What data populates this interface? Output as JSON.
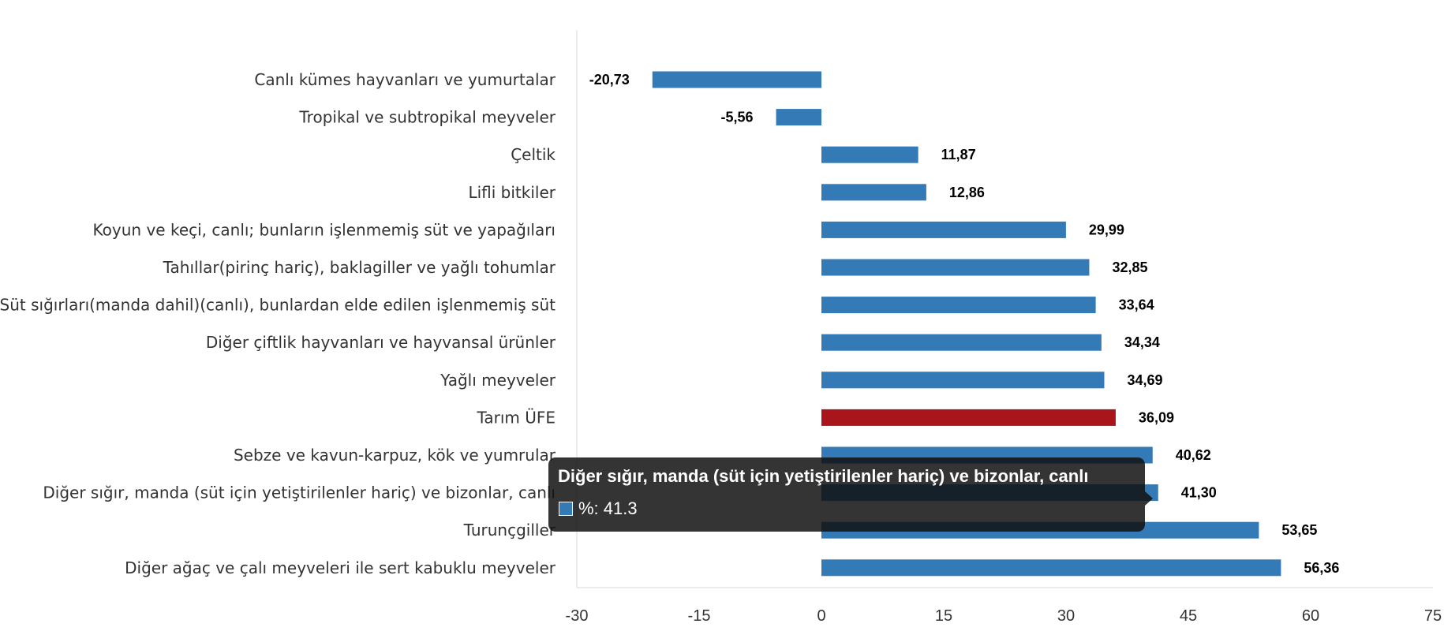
{
  "chart_data": {
    "type": "bar",
    "orientation": "horizontal",
    "title": "",
    "xlabel": "",
    "ylabel": "",
    "xlim": [
      -30,
      75
    ],
    "x_ticks": [
      -30,
      -15,
      0,
      15,
      30,
      45,
      60,
      75
    ],
    "grid": false,
    "legend": "none",
    "categories": [
      "Canlı kümes hayvanları ve yumurtalar",
      "Tropikal ve subtropikal meyveler",
      "Çeltik",
      "Lifli bitkiler",
      "Koyun ve keçi, canlı; bunların işlenmemiş süt ve yapağıları",
      "Tahıllar(pirinç hariç), baklagiller ve yağlı tohumlar",
      "Süt sığırları(manda dahil)(canlı), bunlardan elde edilen işlenmemiş süt",
      "Diğer çiftlik hayvanları ve hayvansal ürünler",
      "Yağlı meyveler",
      "Tarım ÜFE",
      "Sebze ve kavun-karpuz, kök ve yumrular",
      "Diğer sığır, manda (süt için yetiştirilenler hariç) ve bizonlar, canlı",
      "Turunçgiller",
      "Diğer ağaç ve çalı meyveleri ile sert kabuklu meyveler"
    ],
    "values": [
      -20.73,
      -5.56,
      11.87,
      12.86,
      29.99,
      32.85,
      33.64,
      34.34,
      34.69,
      36.09,
      40.62,
      41.3,
      53.65,
      56.36
    ],
    "value_labels": [
      "-20,73",
      "-5,56",
      "11,87",
      "12,86",
      "29,99",
      "32,85",
      "33,64",
      "34,34",
      "34,69",
      "36,09",
      "40,62",
      "41,30",
      "53,65",
      "56,36"
    ],
    "highlight_index": 9,
    "colors": {
      "bar": "#337ab7",
      "highlight": "#a8151b",
      "axis": "#d8d8e0"
    }
  },
  "tooltip": {
    "title": "Diğer sığır, manda (süt için yetiştirilenler hariç) ve bizonlar, canlı",
    "row": "%: 41.3",
    "swatch_color": "#337ab7"
  }
}
